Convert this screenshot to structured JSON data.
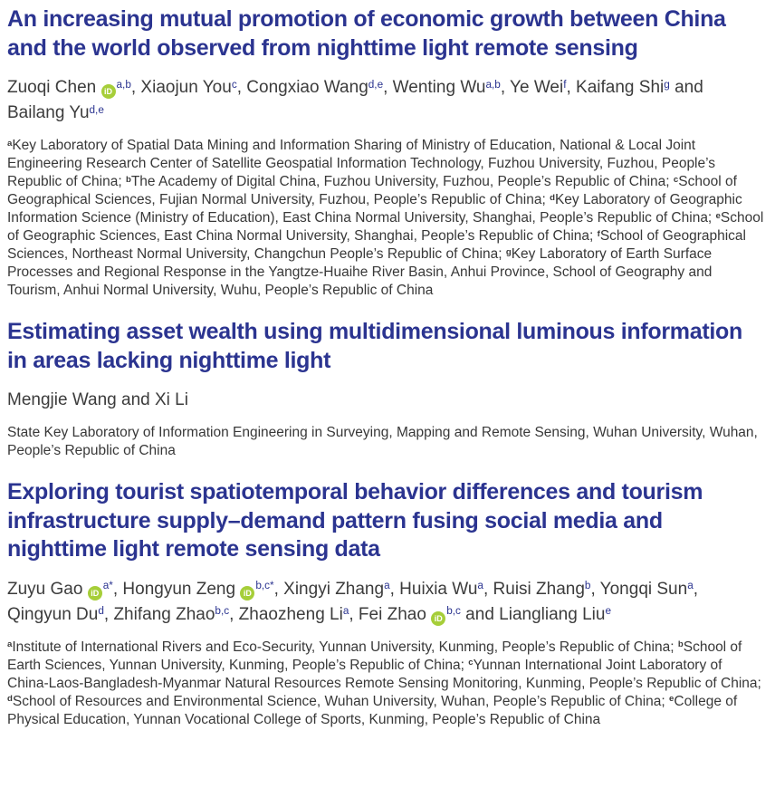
{
  "colors": {
    "title_blue": "#2b3490",
    "superscript_blue": "#2b3490",
    "body_text": "#3b3b3b",
    "orcid_green": "#a6ce39",
    "page_background": "#ffffff"
  },
  "orcid_label": "iD",
  "articles": [
    {
      "title": "An increasing mutual promotion of economic growth between China and the world observed from nighttime light remote sensing",
      "authors": [
        {
          "t": "Zuoqi Chen "
        },
        {
          "orcid": true
        },
        {
          "t": "a,b",
          "sup": true
        },
        {
          "t": ", Xiaojun You"
        },
        {
          "t": "c",
          "sup": true
        },
        {
          "t": ", Congxiao Wang"
        },
        {
          "t": "d,e",
          "sup": true
        },
        {
          "t": ", Wenting Wu"
        },
        {
          "t": "a,b",
          "sup": true
        },
        {
          "t": ", Ye Wei"
        },
        {
          "t": "f",
          "sup": true
        },
        {
          "t": ", Kaifang Shi"
        },
        {
          "t": "g",
          "sup": true
        },
        {
          "t": " and Bailang Yu"
        },
        {
          "t": "d,e",
          "sup": true
        }
      ],
      "affiliations": [
        {
          "t": "a",
          "sup": true
        },
        {
          "t": "Key Laboratory of Spatial Data Mining and Information Sharing of Ministry of Education, National & Local Joint Engineering Research Center of Satellite Geospatial Information Technology, Fuzhou University, Fuzhou, People’s Republic of China; "
        },
        {
          "t": "b",
          "sup": true
        },
        {
          "t": "The Academy of Digital China, Fuzhou University, Fuzhou, People’s Republic of China; "
        },
        {
          "t": "c",
          "sup": true
        },
        {
          "t": "School of Geographical Sciences, Fujian Normal University, Fuzhou, People’s Republic of China; "
        },
        {
          "t": "d",
          "sup": true
        },
        {
          "t": "Key Laboratory of Geographic Information Science (Ministry of Education), East China Normal University, Shanghai, People’s Republic of China; "
        },
        {
          "t": "e",
          "sup": true
        },
        {
          "t": "School of Geographic Sciences, East China Normal University, Shanghai, People’s Republic of China; "
        },
        {
          "t": "f",
          "sup": true
        },
        {
          "t": "School of Geographical Sciences, Northeast Normal University, Changchun People’s Republic of China; "
        },
        {
          "t": "g",
          "sup": true
        },
        {
          "t": "Key Laboratory of Earth Surface Processes and Regional Response in the Yangtze-Huaihe River Basin, Anhui Province, School of Geography and Tourism, Anhui Normal University, Wuhu, People’s Republic of China"
        }
      ]
    },
    {
      "title": "Estimating asset wealth using multidimensional luminous information in areas lacking nighttime light",
      "authors": [
        {
          "t": "Mengjie Wang and Xi Li"
        }
      ],
      "affiliations": [
        {
          "t": "State Key Laboratory of Information Engineering in Surveying, Mapping and Remote Sensing, Wuhan University, Wuhan, People’s Republic of China"
        }
      ]
    },
    {
      "title": "Exploring tourist spatiotemporal behavior differences and tourism infrastructure supply–demand pattern fusing social media and nighttime light remote sensing data",
      "authors": [
        {
          "t": "Zuyu Gao "
        },
        {
          "orcid": true
        },
        {
          "t": "a*",
          "sup": true
        },
        {
          "t": ", Hongyun Zeng "
        },
        {
          "orcid": true
        },
        {
          "t": "b,c*",
          "sup": true
        },
        {
          "t": ", Xingyi Zhang"
        },
        {
          "t": "a",
          "sup": true
        },
        {
          "t": ", Huixia Wu"
        },
        {
          "t": "a",
          "sup": true
        },
        {
          "t": ", Ruisi Zhang"
        },
        {
          "t": "b",
          "sup": true
        },
        {
          "t": ", Yongqi Sun"
        },
        {
          "t": "a",
          "sup": true
        },
        {
          "t": ", Qingyun Du"
        },
        {
          "t": "d",
          "sup": true
        },
        {
          "t": ", Zhifang Zhao"
        },
        {
          "t": "b,c",
          "sup": true
        },
        {
          "t": ", Zhaozheng Li"
        },
        {
          "t": "a",
          "sup": true
        },
        {
          "t": ", Fei Zhao "
        },
        {
          "orcid": true
        },
        {
          "t": "b,c",
          "sup": true
        },
        {
          "t": " and Liangliang Liu"
        },
        {
          "t": "e",
          "sup": true
        }
      ],
      "affiliations": [
        {
          "t": "a",
          "sup": true
        },
        {
          "t": "Institute of International Rivers and Eco-Security, Yunnan University, Kunming, People’s Republic of China; "
        },
        {
          "t": "b",
          "sup": true
        },
        {
          "t": "School of Earth Sciences, Yunnan University, Kunming, People’s Republic of China; "
        },
        {
          "t": "c",
          "sup": true
        },
        {
          "t": "Yunnan International Joint Laboratory of China-Laos-Bangladesh-Myanmar Natural Resources Remote Sensing Monitoring, Kunming, People’s Republic of China; "
        },
        {
          "t": "d",
          "sup": true
        },
        {
          "t": "School of Resources and Environmental Science, Wuhan University, Wuhan, People’s Republic of China; "
        },
        {
          "t": "e",
          "sup": true
        },
        {
          "t": "College of Physical Education, Yunnan Vocational College of Sports, Kunming, People’s Republic of China"
        }
      ]
    }
  ]
}
